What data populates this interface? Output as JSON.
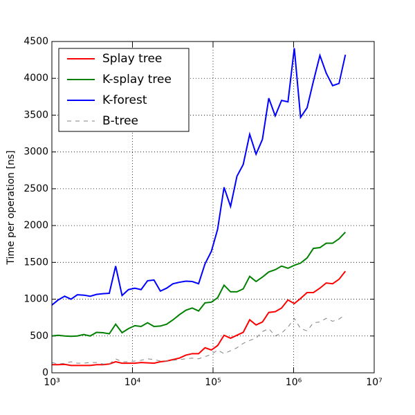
{
  "chart_data": {
    "type": "line",
    "ylabel": "Time per operation [ns]",
    "x": [
      1000,
      1200,
      1440,
      1730,
      2070,
      2490,
      2990,
      3580,
      4300,
      5160,
      6190,
      7430,
      8920,
      10700,
      12800,
      15400,
      18500,
      22200,
      26600,
      31900,
      38300,
      46000,
      55200,
      66200,
      79500,
      95400,
      114000,
      137000,
      165000,
      198000,
      237000,
      285000,
      342000,
      410000,
      492000,
      591000,
      709000,
      851000,
      1020000,
      1220000,
      1470000,
      1760000,
      2120000,
      2540000,
      3050000,
      3660000,
      4390000
    ],
    "series": [
      {
        "name": "Splay tree",
        "color": "#ff0000",
        "style": "solid",
        "values": [
          110,
          110,
          115,
          100,
          100,
          100,
          100,
          110,
          110,
          120,
          150,
          130,
          130,
          130,
          140,
          135,
          130,
          150,
          160,
          180,
          200,
          240,
          260,
          260,
          340,
          310,
          370,
          510,
          470,
          510,
          550,
          720,
          650,
          690,
          820,
          830,
          880,
          990,
          940,
          1010,
          1090,
          1090,
          1150,
          1220,
          1210,
          1270,
          1380
        ]
      },
      {
        "name": "K-splay tree",
        "color": "#008000",
        "style": "solid",
        "values": [
          500,
          510,
          500,
          495,
          500,
          520,
          500,
          550,
          545,
          530,
          660,
          545,
          600,
          640,
          630,
          680,
          630,
          635,
          660,
          720,
          790,
          850,
          880,
          840,
          950,
          960,
          1020,
          1190,
          1100,
          1100,
          1140,
          1310,
          1240,
          1300,
          1370,
          1400,
          1450,
          1420,
          1460,
          1490,
          1560,
          1690,
          1700,
          1760,
          1760,
          1820,
          1910
        ]
      },
      {
        "name": "K-forest",
        "color": "#0000ff",
        "style": "solid",
        "values": [
          920,
          990,
          1040,
          1000,
          1060,
          1055,
          1040,
          1065,
          1075,
          1080,
          1450,
          1050,
          1130,
          1150,
          1130,
          1250,
          1260,
          1110,
          1150,
          1210,
          1230,
          1245,
          1240,
          1210,
          1480,
          1650,
          1950,
          2520,
          2260,
          2670,
          2830,
          3240,
          2970,
          3170,
          3730,
          3490,
          3700,
          3680,
          4410,
          3470,
          3600,
          3960,
          4310,
          4070,
          3900,
          3930,
          4320
        ]
      },
      {
        "name": "B-tree",
        "color": "#808080",
        "style": "dashed",
        "values": [
          140,
          120,
          130,
          150,
          130,
          130,
          140,
          140,
          120,
          120,
          190,
          150,
          150,
          160,
          170,
          190,
          180,
          160,
          160,
          170,
          180,
          190,
          200,
          190,
          220,
          250,
          310,
          260,
          300,
          340,
          400,
          440,
          470,
          560,
          600,
          500,
          540,
          620,
          740,
          600,
          570,
          680,
          690,
          740,
          700,
          730,
          790
        ]
      }
    ],
    "xscale": "log",
    "xlim": [
      1000,
      10000000
    ],
    "xticks": [
      {
        "value": 1000,
        "label": "10³"
      },
      {
        "value": 10000,
        "label": "10⁴"
      },
      {
        "value": 100000,
        "label": "10⁵"
      },
      {
        "value": 1000000,
        "label": "10⁶"
      },
      {
        "value": 10000000,
        "label": "10⁷"
      }
    ],
    "ylim": [
      0,
      4500
    ],
    "yticks": [
      0,
      500,
      1000,
      1500,
      2000,
      2500,
      3000,
      3500,
      4000,
      4500
    ],
    "grid": true,
    "legend": "upper left"
  }
}
